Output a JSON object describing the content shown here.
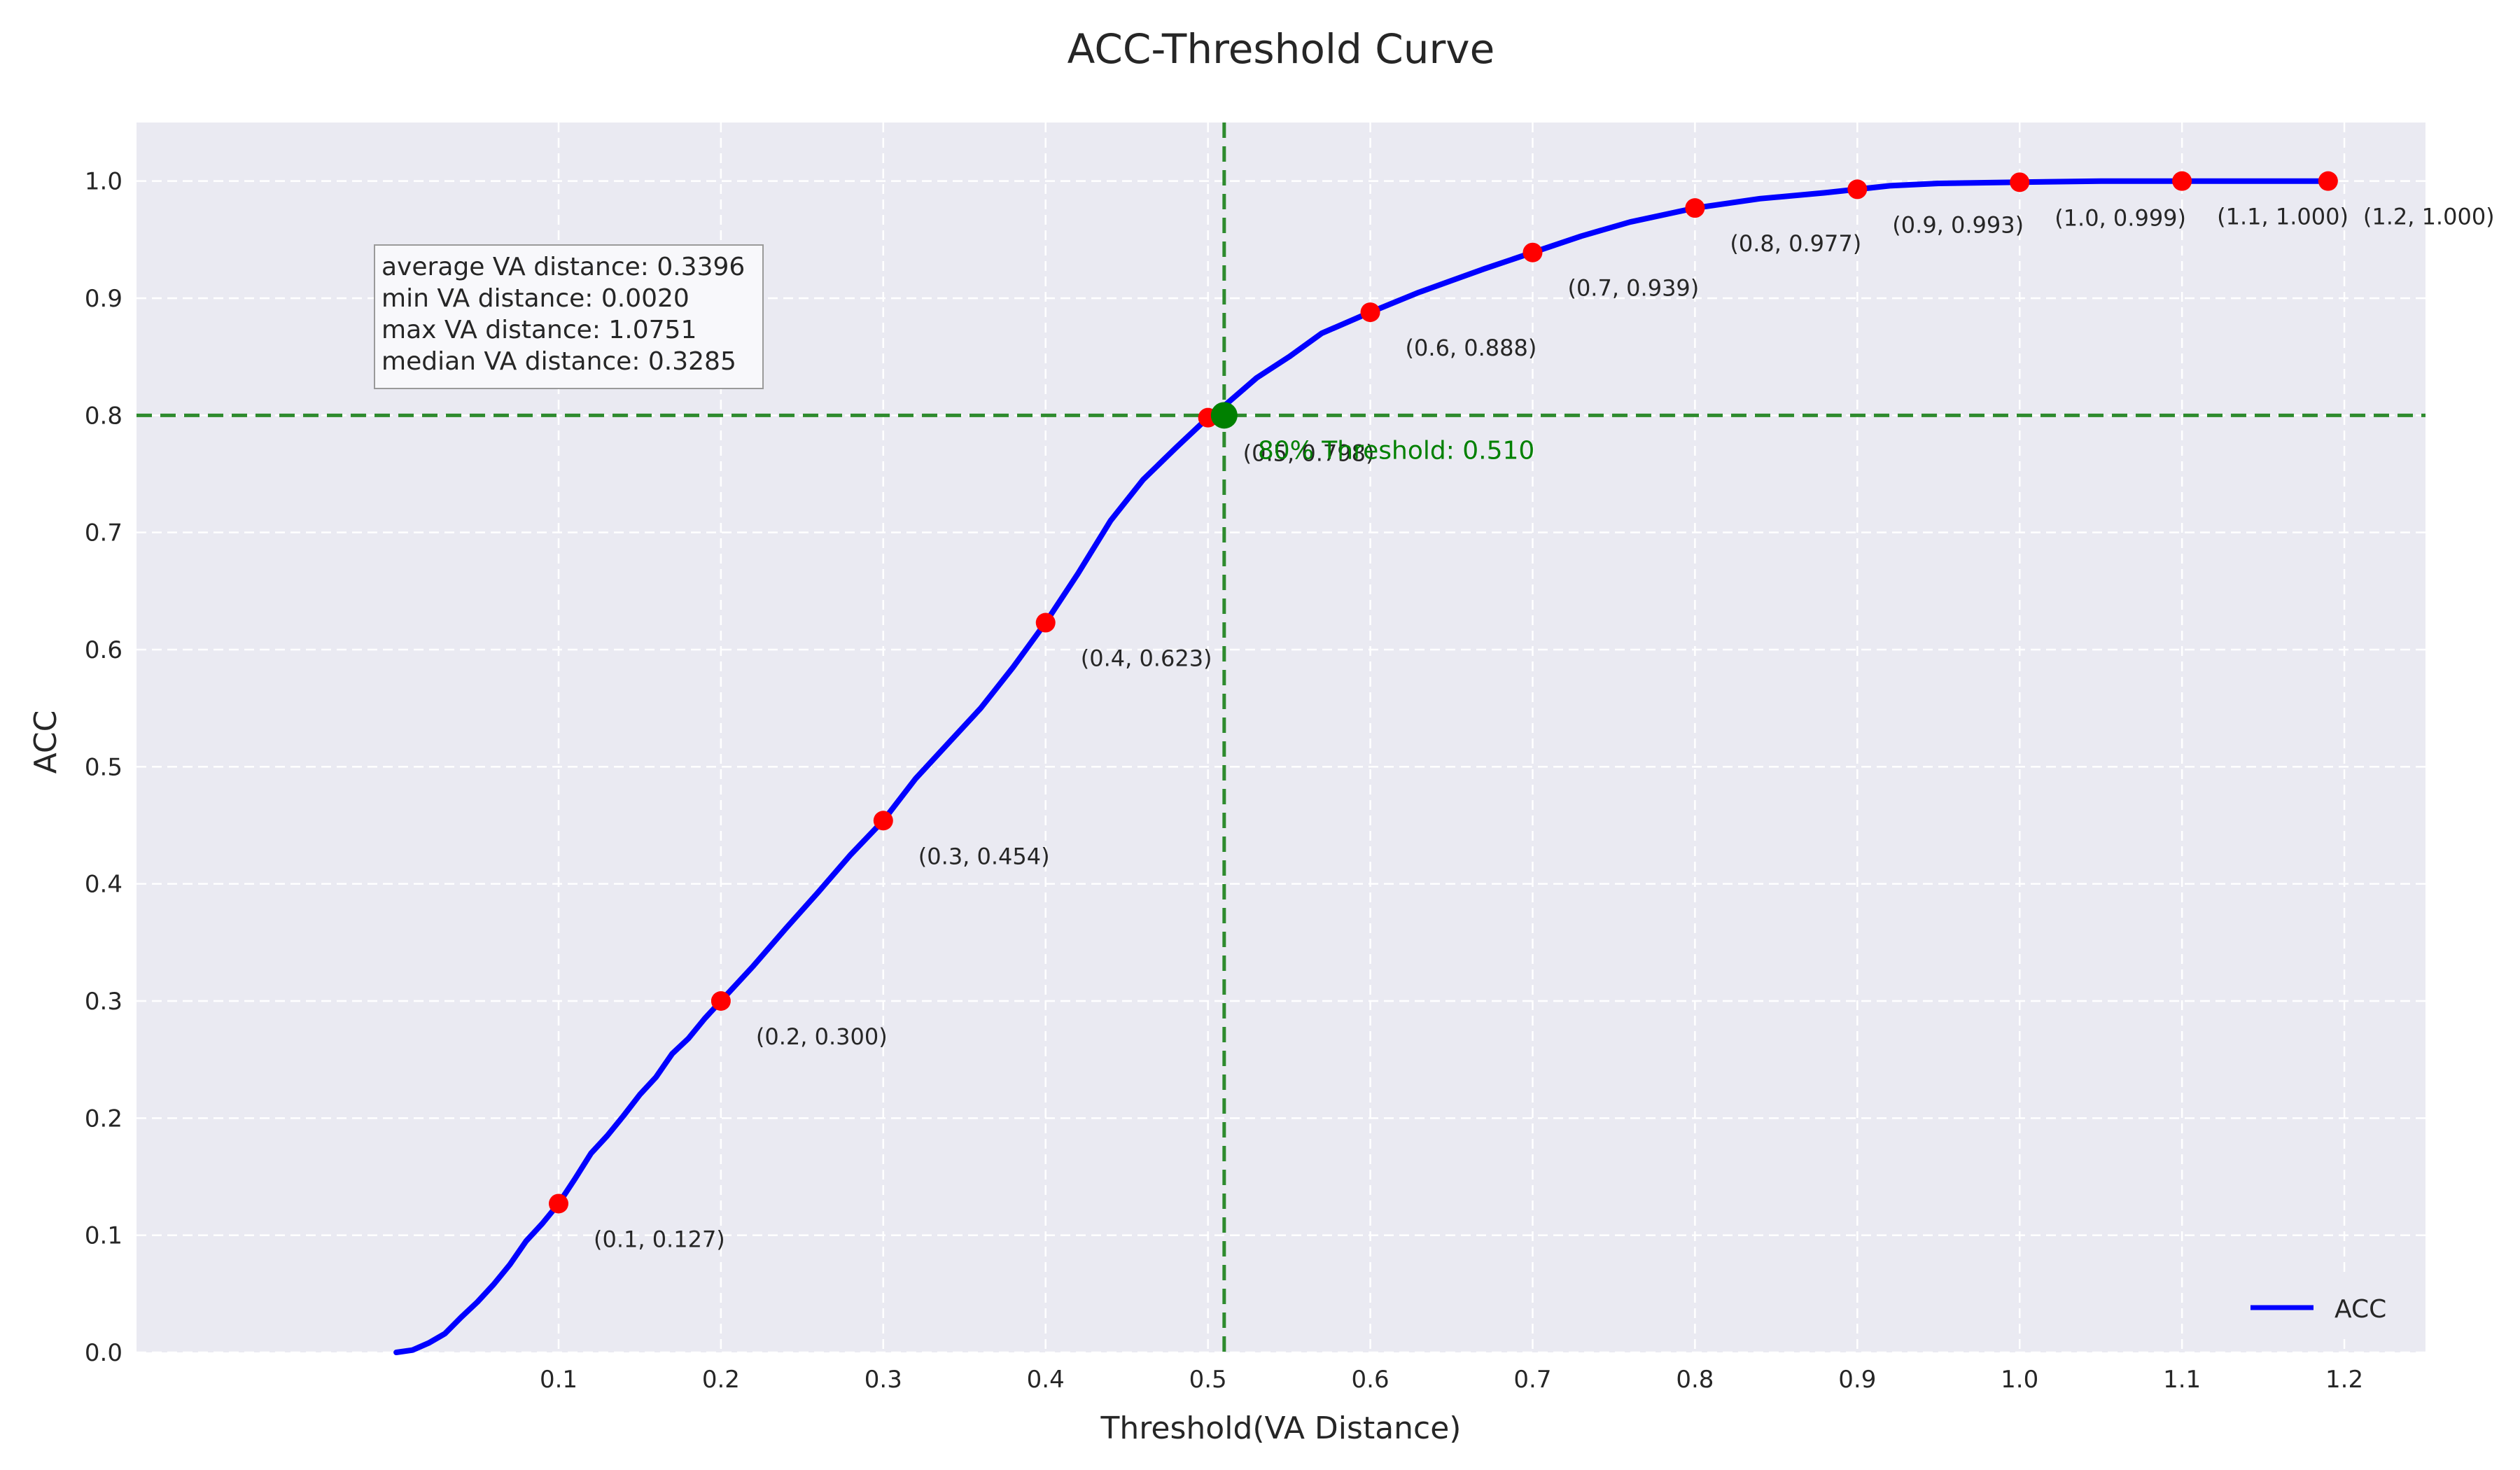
{
  "chart_data": {
    "type": "line",
    "title": "ACC-Threshold Curve",
    "xlabel": "Threshold(VA Distance)",
    "ylabel": "ACC",
    "xlim": [
      -0.16,
      1.25
    ],
    "ylim": [
      0,
      1.05
    ],
    "x_ticks": [
      0.1,
      0.2,
      0.3,
      0.4,
      0.5,
      0.6,
      0.7,
      0.8,
      0.9,
      1.0,
      1.1,
      1.2
    ],
    "y_ticks": [
      0.0,
      0.1,
      0.2,
      0.3,
      0.4,
      0.5,
      0.6,
      0.7,
      0.8,
      0.9,
      1.0
    ],
    "grid": true,
    "legend": {
      "position": "lower-right",
      "entries": [
        "ACC"
      ]
    },
    "series": [
      {
        "name": "ACC",
        "color": "#0000ff",
        "x": [
          0.0,
          0.01,
          0.02,
          0.03,
          0.04,
          0.05,
          0.06,
          0.07,
          0.08,
          0.09,
          0.1,
          0.11,
          0.12,
          0.13,
          0.14,
          0.15,
          0.16,
          0.17,
          0.18,
          0.19,
          0.2,
          0.22,
          0.24,
          0.26,
          0.28,
          0.3,
          0.32,
          0.34,
          0.36,
          0.38,
          0.4,
          0.42,
          0.44,
          0.46,
          0.48,
          0.5,
          0.51,
          0.53,
          0.55,
          0.57,
          0.6,
          0.63,
          0.65,
          0.67,
          0.7,
          0.73,
          0.76,
          0.8,
          0.84,
          0.88,
          0.9,
          0.92,
          0.95,
          1.0,
          1.05,
          1.1,
          1.15,
          1.19
        ],
        "y": [
          0.0,
          0.002,
          0.008,
          0.016,
          0.03,
          0.043,
          0.058,
          0.075,
          0.095,
          0.11,
          0.127,
          0.148,
          0.17,
          0.185,
          0.202,
          0.22,
          0.235,
          0.255,
          0.268,
          0.285,
          0.3,
          0.33,
          0.362,
          0.393,
          0.425,
          0.454,
          0.49,
          0.52,
          0.55,
          0.585,
          0.623,
          0.665,
          0.71,
          0.745,
          0.772,
          0.798,
          0.808,
          0.832,
          0.85,
          0.87,
          0.888,
          0.905,
          0.915,
          0.925,
          0.939,
          0.953,
          0.965,
          0.977,
          0.985,
          0.99,
          0.993,
          0.996,
          0.998,
          0.999,
          1.0,
          1.0,
          1.0,
          1.0
        ]
      }
    ],
    "markers": [
      {
        "x": 0.1,
        "y": 0.127,
        "label": "(0.1, 0.127)"
      },
      {
        "x": 0.2,
        "y": 0.3,
        "label": "(0.2, 0.300)"
      },
      {
        "x": 0.3,
        "y": 0.454,
        "label": "(0.3, 0.454)"
      },
      {
        "x": 0.4,
        "y": 0.623,
        "label": "(0.4, 0.623)"
      },
      {
        "x": 0.5,
        "y": 0.798,
        "label": "(0.5, 0.798)"
      },
      {
        "x": 0.6,
        "y": 0.888,
        "label": "(0.6, 0.888)"
      },
      {
        "x": 0.7,
        "y": 0.939,
        "label": "(0.7, 0.939)"
      },
      {
        "x": 0.8,
        "y": 0.977,
        "label": "(0.8, 0.977)"
      },
      {
        "x": 0.9,
        "y": 0.993,
        "label": "(0.9, 0.993)"
      },
      {
        "x": 1.0,
        "y": 0.999,
        "label": "(1.0, 0.999)"
      },
      {
        "x": 1.1,
        "y": 1.0,
        "label": "(1.1, 1.000)"
      },
      {
        "x": 1.19,
        "y": 1.0,
        "label": "(1.2, 1.000)"
      }
    ],
    "threshold": {
      "x": 0.51,
      "y": 0.8,
      "label": "80% Threshold: 0.510",
      "color": "#2e8b2e"
    },
    "stats_box": [
      "average VA distance: 0.3396",
      "min VA distance: 0.0020",
      "max VA distance: 1.0751",
      "median VA distance: 0.3285"
    ],
    "colors": {
      "plot_background": "#eaeaf2",
      "grid": "#ffffff",
      "marker": "#ff0000",
      "threshold_marker": "#008000",
      "threshold_text": "#008000"
    }
  }
}
